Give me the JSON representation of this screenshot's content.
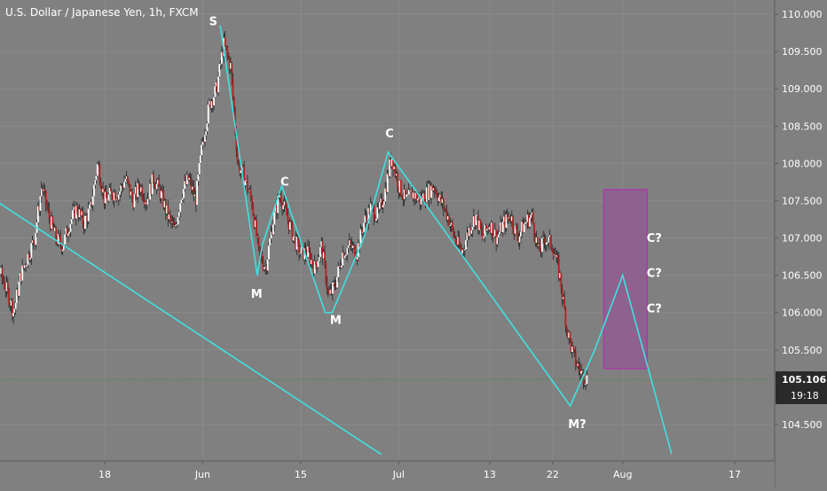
{
  "header": {
    "title": "U.S. Dollar / Japanese Yen, 1h, FXCM"
  },
  "colors": {
    "background": "#808080",
    "grid": "#8a8a8a",
    "candle_up": "#ffffff",
    "candle_down": "#b22222",
    "wick": "#222222",
    "wave_line": "#40e0e0",
    "box_stroke": "#b030b0",
    "box_fill": "#8f5e8f",
    "price_tag": "#2a2a2a",
    "dotted_line": "#3a8a3a"
  },
  "chart_data": {
    "type": "candlestick",
    "symbol": "U.S. Dollar / Japanese Yen",
    "interval": "1h",
    "source": "FXCM",
    "y_axis": {
      "side": "right",
      "ylim": [
        104.1,
        110.1
      ],
      "ticks": [
        "110.000",
        "109.500",
        "109.000",
        "108.500",
        "108.000",
        "107.500",
        "107.000",
        "106.500",
        "106.000",
        "105.500",
        "104.500"
      ],
      "tick_values": [
        110.0,
        109.5,
        109.0,
        108.5,
        108.0,
        107.5,
        107.0,
        106.5,
        106.0,
        105.5,
        104.5
      ]
    },
    "x_axis": {
      "ticks": [
        "18",
        "Jun",
        "15",
        "Jul",
        "13",
        "22",
        "Aug",
        "17"
      ],
      "tick_positions_day": [
        18,
        32,
        46,
        60,
        73,
        82,
        92,
        108
      ]
    },
    "last_price": "105.106",
    "countdown": "19:18",
    "price_path": [
      [
        0,
        107.0
      ],
      [
        2,
        106.8
      ],
      [
        4,
        106.3
      ],
      [
        5,
        106.0
      ],
      [
        6,
        106.5
      ],
      [
        8,
        107.0
      ],
      [
        9,
        107.7
      ],
      [
        10,
        107.3
      ],
      [
        11,
        107.0
      ],
      [
        12,
        106.9
      ],
      [
        13,
        107.2
      ],
      [
        14,
        107.4
      ],
      [
        15,
        107.2
      ],
      [
        16,
        107.4
      ],
      [
        17,
        108.0
      ],
      [
        18,
        107.5
      ],
      [
        19,
        107.6
      ],
      [
        20,
        107.6
      ],
      [
        21,
        107.8
      ],
      [
        22,
        107.5
      ],
      [
        23,
        107.7
      ],
      [
        24,
        107.5
      ],
      [
        25,
        107.8
      ],
      [
        26,
        107.6
      ],
      [
        27,
        107.3
      ],
      [
        28,
        107.1
      ],
      [
        29,
        107.6
      ],
      [
        30,
        107.8
      ],
      [
        31,
        107.5
      ],
      [
        32,
        108.3
      ],
      [
        33,
        108.8
      ],
      [
        34,
        109.0
      ],
      [
        35,
        109.6
      ],
      [
        36,
        109.3
      ],
      [
        37,
        108.0
      ],
      [
        38,
        107.8
      ],
      [
        39,
        107.5
      ],
      [
        40,
        106.8
      ],
      [
        41,
        106.6
      ],
      [
        42,
        107.2
      ],
      [
        43,
        107.6
      ],
      [
        44,
        107.3
      ],
      [
        45,
        107.0
      ],
      [
        46,
        106.8
      ],
      [
        47,
        106.8
      ],
      [
        48,
        106.6
      ],
      [
        49,
        106.9
      ],
      [
        50,
        106.2
      ],
      [
        51,
        106.4
      ],
      [
        52,
        106.8
      ],
      [
        53,
        106.9
      ],
      [
        54,
        106.8
      ],
      [
        55,
        107.2
      ],
      [
        56,
        107.4
      ],
      [
        57,
        107.3
      ],
      [
        58,
        107.6
      ],
      [
        59,
        108.1
      ],
      [
        60,
        107.7
      ],
      [
        61,
        107.5
      ],
      [
        62,
        107.6
      ],
      [
        63,
        107.5
      ],
      [
        64,
        107.6
      ],
      [
        65,
        107.7
      ],
      [
        66,
        107.5
      ],
      [
        67,
        107.3
      ],
      [
        68,
        107.0
      ],
      [
        69,
        106.8
      ],
      [
        70,
        107.1
      ],
      [
        71,
        107.3
      ],
      [
        72,
        107.0
      ],
      [
        73,
        107.2
      ],
      [
        74,
        107.0
      ],
      [
        75,
        107.2
      ],
      [
        76,
        107.3
      ],
      [
        77,
        107.0
      ],
      [
        78,
        107.2
      ],
      [
        79,
        107.3
      ],
      [
        80,
        106.8
      ],
      [
        81,
        107.0
      ],
      [
        82,
        106.9
      ],
      [
        83,
        106.5
      ],
      [
        84,
        105.8
      ],
      [
        85,
        105.4
      ],
      [
        86,
        105.2
      ],
      [
        87,
        105.1
      ]
    ],
    "wave_labels": [
      {
        "text": "S",
        "day": 33.5,
        "price": 109.85
      },
      {
        "text": "M",
        "day": 39.7,
        "price": 106.2
      },
      {
        "text": "C",
        "day": 43.7,
        "price": 107.7
      },
      {
        "text": "M",
        "day": 51.0,
        "price": 105.85
      },
      {
        "text": "C",
        "day": 58.7,
        "price": 108.35
      },
      {
        "text": "M?",
        "day": 85.5,
        "price": 104.45
      },
      {
        "text": "C?",
        "day": 96.5,
        "price": 106.95
      },
      {
        "text": "C?",
        "day": 96.5,
        "price": 106.48
      },
      {
        "text": "C?",
        "day": 96.5,
        "price": 106.0
      }
    ],
    "wave_path": [
      [
        34.5,
        109.85
      ],
      [
        39.8,
        106.5
      ],
      [
        40.5,
        106.9
      ],
      [
        43.3,
        107.7
      ],
      [
        49.5,
        106.0
      ],
      [
        50.5,
        106.0
      ],
      [
        55.0,
        107.0
      ],
      [
        58.5,
        108.15
      ],
      [
        84.5,
        104.75
      ],
      [
        88.0,
        105.5
      ],
      [
        92.0,
        106.5
      ],
      [
        99.0,
        104.1
      ]
    ],
    "trendline": [
      [
        0,
        107.65
      ],
      [
        57.5,
        104.1
      ]
    ],
    "box": {
      "day_from": 89.3,
      "day_to": 95.5,
      "price_from": 105.25,
      "price_to": 107.65
    }
  }
}
